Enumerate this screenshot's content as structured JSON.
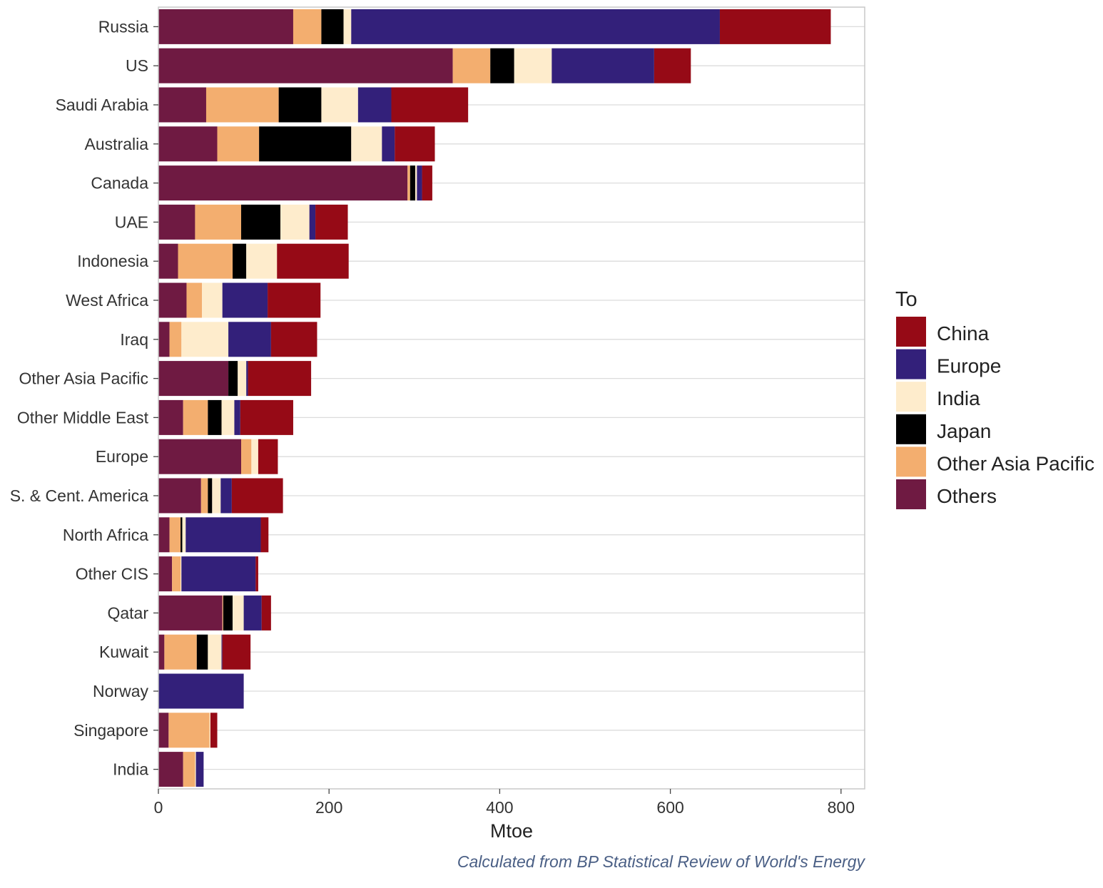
{
  "chart_data": {
    "type": "bar",
    "orientation": "horizontal",
    "stacked": true,
    "xlabel": "Mtoe",
    "ylabel": "",
    "xlim": [
      0,
      830
    ],
    "xticks": [
      0,
      200,
      400,
      600,
      800
    ],
    "grid": true,
    "legend_title": "To",
    "legend_position": "right",
    "caption": "Calculated from BP Statistical Review of World's Energy",
    "categories": [
      "Russia",
      "US",
      "Saudi Arabia",
      "Australia",
      "Canada",
      "UAE",
      "Indonesia",
      "West Africa",
      "Iraq",
      "Other Asia Pacific",
      "Other Middle East",
      "Europe",
      "S. & Cent. America",
      "North Africa",
      "Other CIS",
      "Qatar",
      "Kuwait",
      "Norway",
      "Singapore",
      "India"
    ],
    "series": [
      {
        "name": "Others",
        "color": "#6f1a42",
        "values": [
          158,
          345,
          56,
          69,
          292,
          43,
          23,
          33,
          13,
          82,
          29,
          97,
          50,
          13,
          16,
          75,
          7,
          0,
          12,
          29
        ]
      },
      {
        "name": "Other Asia Pacific",
        "color": "#f3ae6f",
        "values": [
          33,
          44,
          85,
          49,
          3,
          54,
          64,
          18,
          14,
          0,
          29,
          12,
          8,
          13,
          10,
          1,
          38,
          0,
          48,
          14
        ]
      },
      {
        "name": "Japan",
        "color": "#000000",
        "values": [
          26,
          28,
          50,
          108,
          6,
          46,
          16,
          0,
          0,
          11,
          16,
          0,
          5,
          2,
          0,
          11,
          13,
          0,
          0,
          0
        ]
      },
      {
        "name": "India",
        "color": "#feeccc",
        "values": [
          9,
          44,
          43,
          36,
          2,
          34,
          36,
          24,
          55,
          10,
          15,
          8,
          10,
          4,
          1,
          13,
          16,
          0,
          1,
          1
        ]
      },
      {
        "name": "Europe",
        "color": "#33207a",
        "values": [
          432,
          120,
          39,
          15,
          6,
          7,
          0,
          53,
          50,
          2,
          7,
          0,
          13,
          88,
          87,
          21,
          1,
          100,
          0,
          9
        ]
      },
      {
        "name": "China",
        "color": "#960a16",
        "values": [
          130,
          43,
          90,
          47,
          12,
          38,
          84,
          62,
          54,
          74,
          62,
          23,
          60,
          9,
          3,
          11,
          33,
          0,
          8,
          0
        ]
      }
    ]
  }
}
